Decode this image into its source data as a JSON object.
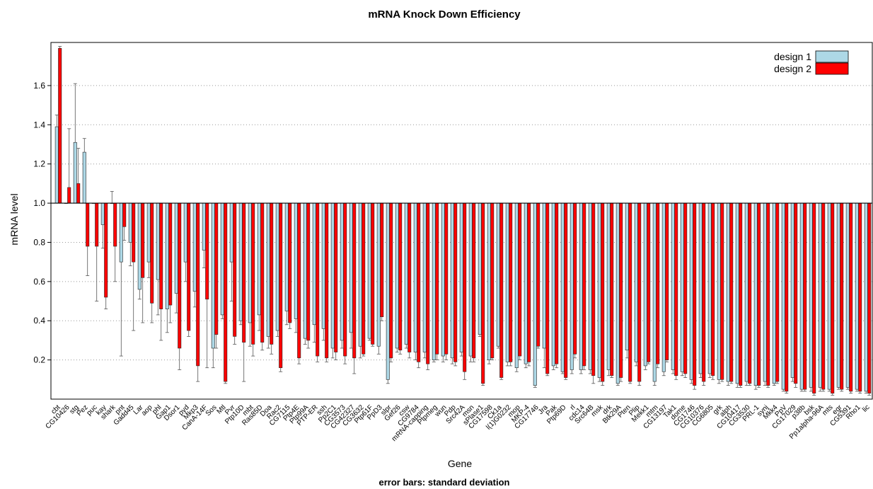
{
  "chart_data": {
    "type": "bar",
    "title": "mRNA Knock Down Efficiency",
    "xlabel": "Gene",
    "ylabel": "mRNA level",
    "footer": "error bars: standard deviation",
    "baseline": 1.0,
    "ylim": [
      0.0,
      1.82
    ],
    "yticks": [
      0.2,
      0.4,
      0.6,
      0.8,
      1.0,
      1.2,
      1.4,
      1.6
    ],
    "ytick_labels": [
      "0.2",
      "0.4",
      "0.6",
      "0.8",
      "1.0",
      "1.2",
      "1.4",
      "1.6"
    ],
    "grid": "horizontal-dotted",
    "legend_position": "top-right",
    "categories": [
      "cbt",
      "CG10426",
      "stg",
      "Pez",
      "puc",
      "kay",
      "shark",
      "pnt",
      "Gadd45",
      "Lar",
      "aop",
      "phl",
      "Gap1",
      "Dsor1",
      "pyd",
      "Mkp3",
      "CanA-14F",
      "Sos",
      "Mtl",
      "Pvr",
      "Ptp10D",
      "mbt",
      "Ras85D",
      "Doa",
      "Rac2",
      "CG7115",
      "Ptp4E",
      "Ptp99A",
      "PTP-ER",
      "ssh",
      "Pp2C1",
      "CG3573",
      "CG42327",
      "CG3632",
      "Ptp61F",
      "PpD3",
      "slpr",
      "Gef26",
      "csw",
      "CG9784",
      "mRNA-capping",
      "Ptpmeg",
      "wun",
      "Pdp",
      "Src42A",
      "msn",
      "sPlase1",
      "CG17598",
      "Ck1a",
      "l(1)G0232",
      "mop",
      "MKP-4",
      "CG17746",
      "Jra",
      "Pak",
      "Ptp69D",
      "rl",
      "cdc14",
      "Src64B",
      "msk",
      "drk",
      "Btk29A",
      "Pten",
      "Plip",
      "Mekk1",
      "mtm",
      "CG13197",
      "Tak1",
      "dome",
      "CG1746",
      "CG10376",
      "CG6805",
      "grk",
      "alph",
      "CG10417",
      "CG3530",
      "PRL-1",
      "synj",
      "Mkk4",
      "PpV",
      "CG17029",
      "p38b",
      "bsk",
      "Pp1alpha-96A",
      "mts",
      "egr",
      "CG5391",
      "Rho1",
      "lic"
    ],
    "series": [
      {
        "name": "design 1",
        "color": "#add8e6",
        "values": [
          1.39,
          1.0,
          1.31,
          1.26,
          1.0,
          0.89,
          1.0,
          0.7,
          0.8,
          0.56,
          0.7,
          0.61,
          0.46,
          0.54,
          0.7,
          0.55,
          0.76,
          0.26,
          0.43,
          0.7,
          0.4,
          0.39,
          0.43,
          0.32,
          0.35,
          0.45,
          0.41,
          0.31,
          0.38,
          0.36,
          0.26,
          0.3,
          0.34,
          0.27,
          0.31,
          0.27,
          0.1,
          0.26,
          0.28,
          0.24,
          0.24,
          0.2,
          0.22,
          0.21,
          0.24,
          0.22,
          0.33,
          0.2,
          0.27,
          0.19,
          0.16,
          0.18,
          0.07,
          0.26,
          0.17,
          0.14,
          0.15,
          0.15,
          0.15,
          0.11,
          0.15,
          0.08,
          0.25,
          0.19,
          0.17,
          0.09,
          0.14,
          0.15,
          0.14,
          0.1,
          0.13,
          0.13,
          0.1,
          0.09,
          0.08,
          0.09,
          0.07,
          0.09,
          0.08,
          0.05,
          0.11,
          0.05,
          0.06,
          0.06,
          0.05,
          0.06,
          0.06,
          0.05,
          0.04
        ],
        "error": [
          0.06,
          0.0,
          0.3,
          0.07,
          0.0,
          0.12,
          0.06,
          0.48,
          0.12,
          0.05,
          0.08,
          0.18,
          0.12,
          0.1,
          0.1,
          0.08,
          0.09,
          0.1,
          0.02,
          0.2,
          0.02,
          0.12,
          0.08,
          0.06,
          0.03,
          0.07,
          0.07,
          0.03,
          0.09,
          0.06,
          0.05,
          0.04,
          0.08,
          0.06,
          0.01,
          0.04,
          0.02,
          0.02,
          0.02,
          0.04,
          0.03,
          0.01,
          0.03,
          0.03,
          0.02,
          0.03,
          0.01,
          0.02,
          0.01,
          0.02,
          0.02,
          0.02,
          0.01,
          0.1,
          0.02,
          0.01,
          0.02,
          0.02,
          0.02,
          0.02,
          0.03,
          0.01,
          0.04,
          0.02,
          0.02,
          0.02,
          0.02,
          0.02,
          0.02,
          0.02,
          0.02,
          0.02,
          0.02,
          0.02,
          0.02,
          0.02,
          0.02,
          0.02,
          0.01,
          0.01,
          0.02,
          0.01,
          0.02,
          0.02,
          0.01,
          0.01,
          0.01,
          0.01,
          0.01
        ]
      },
      {
        "name": "design 2",
        "color": "#ff0000",
        "values": [
          1.79,
          1.08,
          1.1,
          0.78,
          0.78,
          0.52,
          0.78,
          0.88,
          0.7,
          0.62,
          0.49,
          0.46,
          0.48,
          0.26,
          0.35,
          0.17,
          0.51,
          0.33,
          0.09,
          0.32,
          0.29,
          0.28,
          0.29,
          0.28,
          0.16,
          0.39,
          0.21,
          0.3,
          0.22,
          0.21,
          0.24,
          0.22,
          0.21,
          0.23,
          0.28,
          0.42,
          0.21,
          0.25,
          0.24,
          0.19,
          0.18,
          0.23,
          0.23,
          0.19,
          0.14,
          0.21,
          0.08,
          0.21,
          0.11,
          0.19,
          0.22,
          0.19,
          0.27,
          0.13,
          0.18,
          0.11,
          0.23,
          0.17,
          0.12,
          0.09,
          0.12,
          0.11,
          0.09,
          0.09,
          0.19,
          0.18,
          0.2,
          0.12,
          0.13,
          0.07,
          0.09,
          0.12,
          0.1,
          0.09,
          0.07,
          0.08,
          0.07,
          0.07,
          0.09,
          0.04,
          0.08,
          0.05,
          0.03,
          0.05,
          0.03,
          0.05,
          0.04,
          0.04,
          0.03
        ],
        "error": [
          0.01,
          0.3,
          0.18,
          0.15,
          0.28,
          0.06,
          0.18,
          0.07,
          0.35,
          0.23,
          0.1,
          0.16,
          0.09,
          0.11,
          0.03,
          0.08,
          0.35,
          0.07,
          0.01,
          0.04,
          0.2,
          0.06,
          0.04,
          0.05,
          0.02,
          0.03,
          0.03,
          0.04,
          0.03,
          0.02,
          0.04,
          0.04,
          0.08,
          0.01,
          0.01,
          0.02,
          0.02,
          0.02,
          0.03,
          0.03,
          0.03,
          0.03,
          0.03,
          0.02,
          0.04,
          0.02,
          0.01,
          0.01,
          0.01,
          0.02,
          0.02,
          0.02,
          0.01,
          0.01,
          0.02,
          0.01,
          0.02,
          0.02,
          0.04,
          0.02,
          0.01,
          0.02,
          0.01,
          0.02,
          0.01,
          0.02,
          0.01,
          0.02,
          0.02,
          0.02,
          0.02,
          0.02,
          0.01,
          0.01,
          0.01,
          0.01,
          0.01,
          0.01,
          0.01,
          0.01,
          0.02,
          0.01,
          0.01,
          0.01,
          0.01,
          0.01,
          0.01,
          0.01,
          0.01
        ]
      }
    ]
  }
}
